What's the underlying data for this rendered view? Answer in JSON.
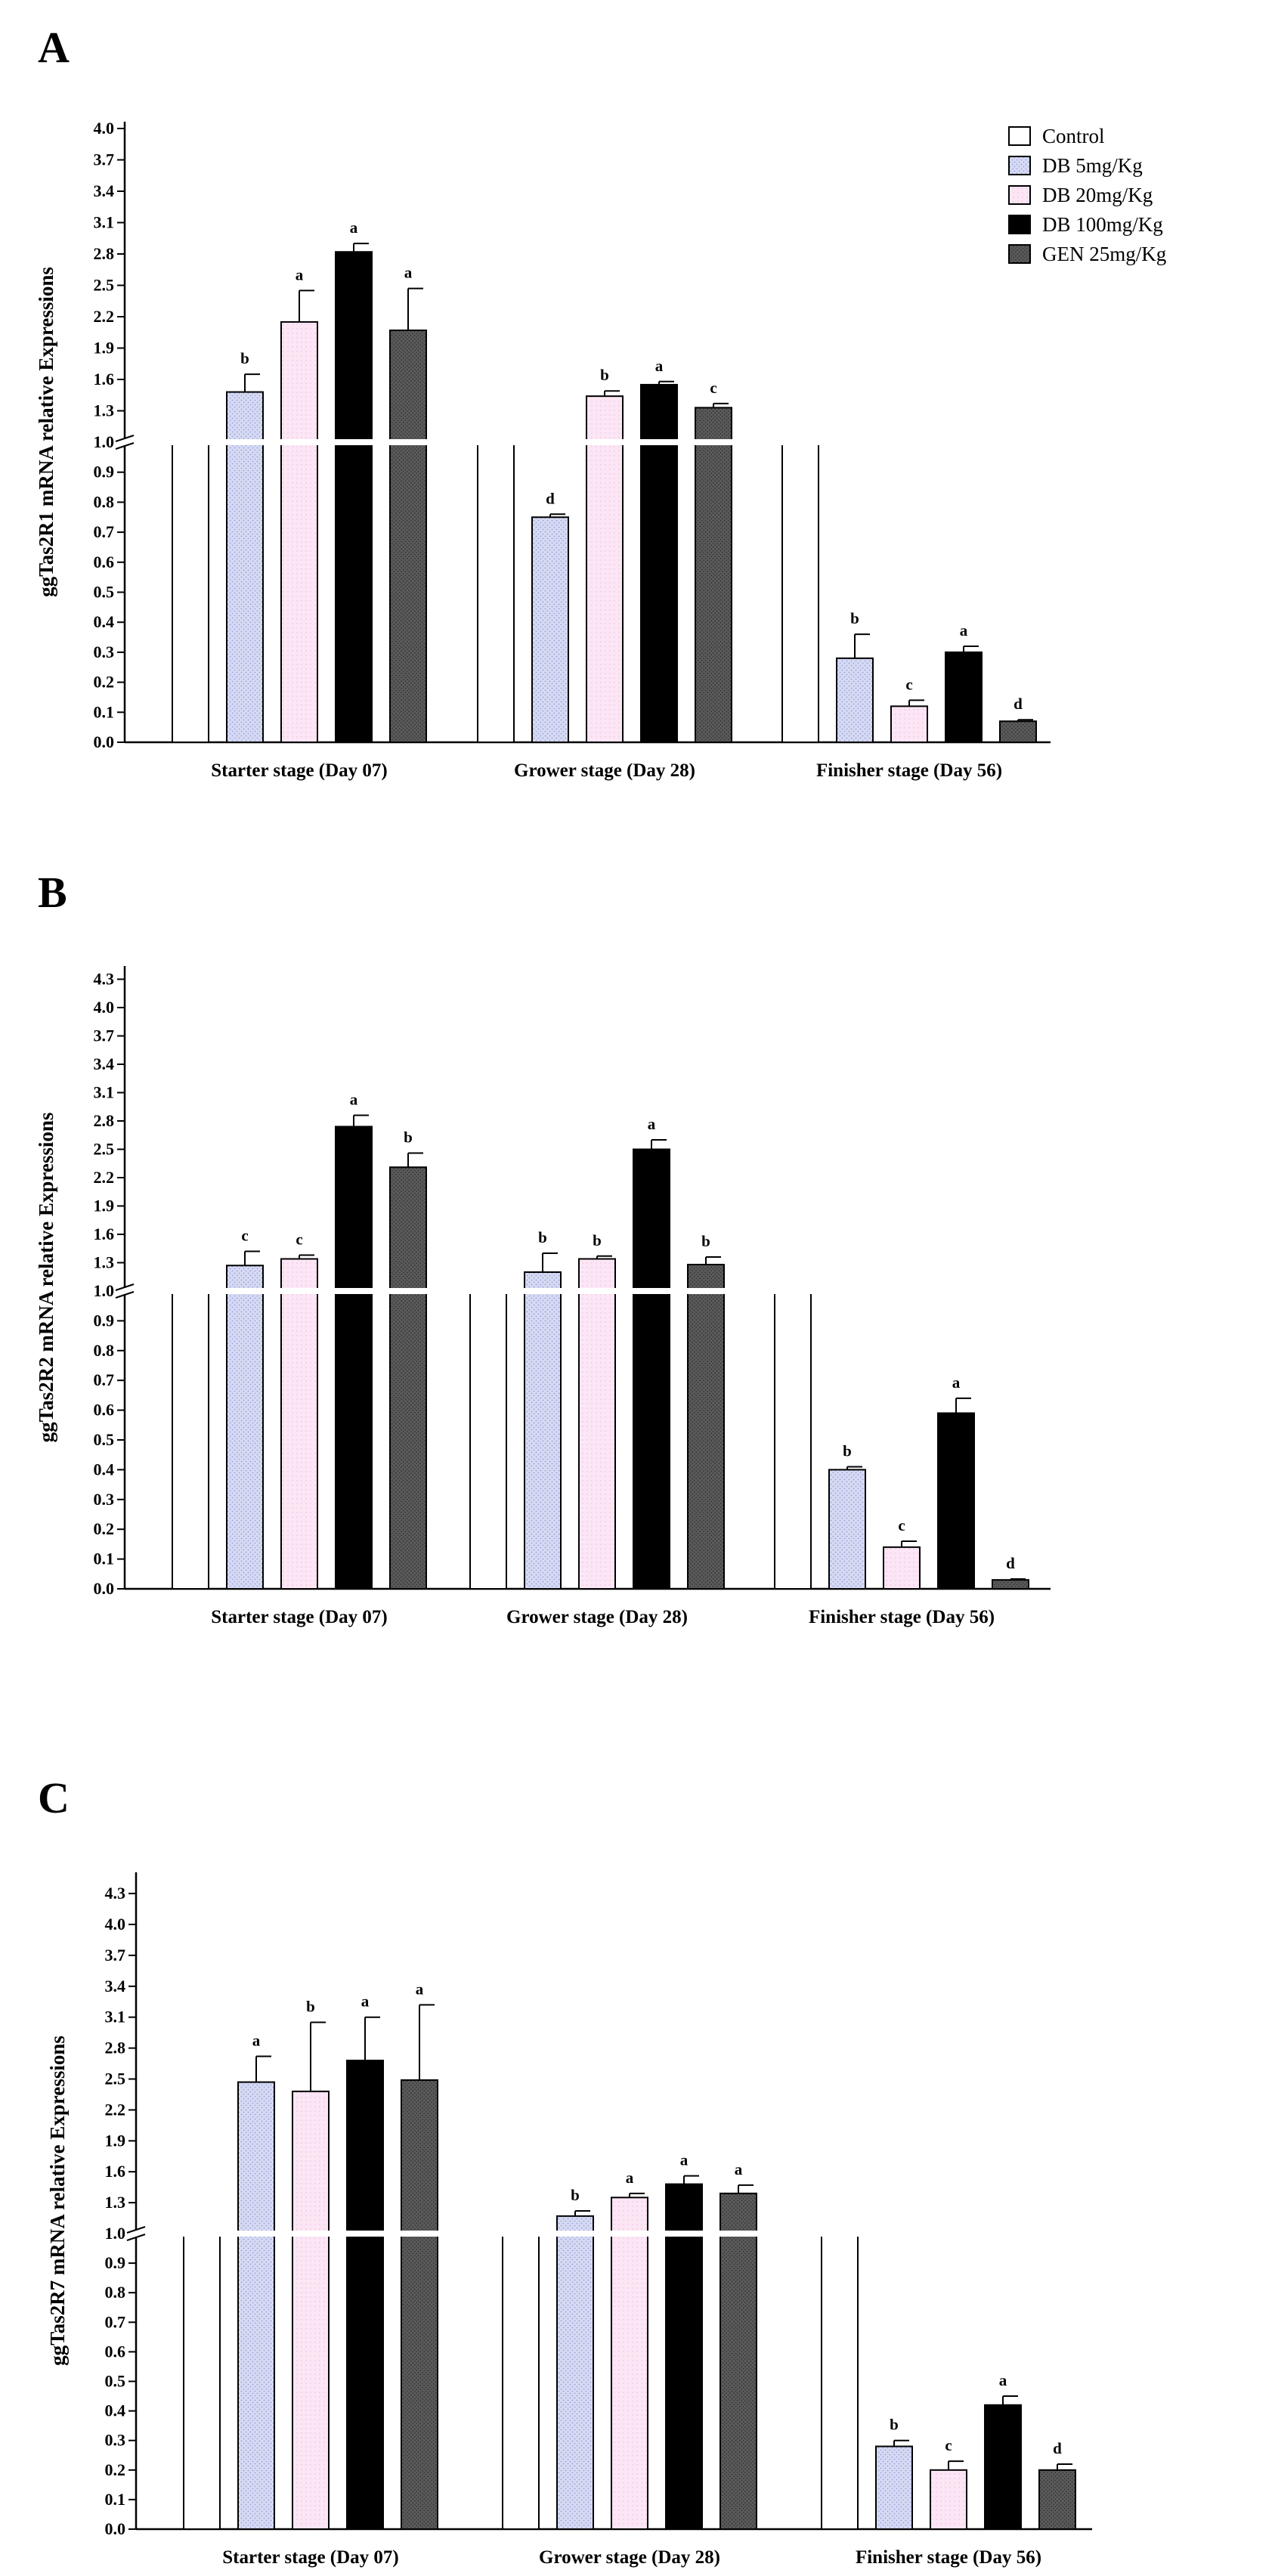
{
  "chart_data": [
    {
      "panel": "A",
      "type": "bar",
      "ylabel": "ggTas2R1 mRNA relative Expressions",
      "lower_ticks": [
        "0.0",
        "0.1",
        "0.2",
        "0.3",
        "0.4",
        "0.5",
        "0.6",
        "0.7",
        "0.8",
        "0.9",
        "1.0"
      ],
      "upper_ticks": [
        "1.3",
        "1.6",
        "1.9",
        "2.2",
        "2.5",
        "2.8",
        "3.1",
        "3.4",
        "3.7",
        "4.0"
      ],
      "lower_range": [
        0,
        1.0
      ],
      "upper_range": [
        1.0,
        4.0
      ],
      "categories": [
        "Starter stage (Day 07)",
        "Grower stage (Day 28)",
        "Finisher stage (Day 56)"
      ],
      "series": [
        {
          "name": "Control",
          "values": [
            1.0,
            1.0,
            1.0
          ],
          "errors": [
            0,
            0,
            0
          ],
          "labels": [
            "",
            "",
            ""
          ]
        },
        {
          "name": "DB 5mg/Kg",
          "values": [
            1.48,
            0.75,
            0.28
          ],
          "errors": [
            0.17,
            0.01,
            0.08
          ],
          "labels": [
            "b",
            "d",
            "b"
          ]
        },
        {
          "name": "DB 20mg/Kg",
          "values": [
            2.15,
            1.44,
            0.12
          ],
          "errors": [
            0.3,
            0.05,
            0.02
          ],
          "labels": [
            "a",
            "b",
            "c"
          ]
        },
        {
          "name": "DB 100mg/Kg",
          "values": [
            2.82,
            1.55,
            0.3
          ],
          "errors": [
            0.08,
            0.03,
            0.02
          ],
          "labels": [
            "a",
            "a",
            "a"
          ]
        },
        {
          "name": "GEN 25mg/Kg",
          "values": [
            2.07,
            1.33,
            0.07
          ],
          "errors": [
            0.4,
            0.04,
            0.005
          ],
          "labels": [
            "a",
            "c",
            "d"
          ]
        }
      ]
    },
    {
      "panel": "B",
      "type": "bar",
      "ylabel": "ggTas2R2 mRNA relative Expressions",
      "lower_ticks": [
        "0.0",
        "0.1",
        "0.2",
        "0.3",
        "0.4",
        "0.5",
        "0.6",
        "0.7",
        "0.8",
        "0.9",
        "1.0"
      ],
      "upper_ticks": [
        "1.3",
        "1.6",
        "1.9",
        "2.2",
        "2.5",
        "2.8",
        "3.1",
        "3.4",
        "3.7",
        "4.0",
        "4.3"
      ],
      "lower_range": [
        0,
        1.0
      ],
      "upper_range": [
        1.0,
        4.3
      ],
      "categories": [
        "Starter stage (Day 07)",
        "Grower stage (Day 28)",
        "Finisher stage (Day 56)"
      ],
      "series": [
        {
          "name": "Control",
          "values": [
            1.0,
            1.0,
            1.0
          ],
          "errors": [
            0,
            0,
            0
          ],
          "labels": [
            "",
            "",
            ""
          ]
        },
        {
          "name": "DB 5mg/Kg",
          "values": [
            1.27,
            1.2,
            0.4
          ],
          "errors": [
            0.15,
            0.2,
            0.01
          ],
          "labels": [
            "c",
            "b",
            "b"
          ]
        },
        {
          "name": "DB 20mg/Kg",
          "values": [
            1.34,
            1.34,
            0.14
          ],
          "errors": [
            0.04,
            0.03,
            0.02
          ],
          "labels": [
            "c",
            "b",
            "c"
          ]
        },
        {
          "name": "DB 100mg/Kg",
          "values": [
            2.74,
            2.5,
            0.59
          ],
          "errors": [
            0.12,
            0.1,
            0.05
          ],
          "labels": [
            "a",
            "a",
            "a"
          ]
        },
        {
          "name": "GEN 25mg/Kg",
          "values": [
            2.31,
            1.28,
            0.03
          ],
          "errors": [
            0.15,
            0.08,
            0.003
          ],
          "labels": [
            "b",
            "b",
            "d"
          ]
        }
      ]
    },
    {
      "panel": "C",
      "type": "bar",
      "ylabel": "ggTas2R7 mRNA relative Expressions",
      "lower_ticks": [
        "0.0",
        "0.1",
        "0.2",
        "0.3",
        "0.4",
        "0.5",
        "0.6",
        "0.7",
        "0.8",
        "0.9",
        "1.0"
      ],
      "upper_ticks": [
        "1.3",
        "1.6",
        "1.9",
        "2.2",
        "2.5",
        "2.8",
        "3.1",
        "3.4",
        "3.7",
        "4.0",
        "4.3"
      ],
      "lower_range": [
        0,
        1.0
      ],
      "upper_range": [
        1.0,
        4.3
      ],
      "categories": [
        "Starter stage (Day 07)",
        "Grower stage (Day 28)",
        "Finisher stage (Day 56)"
      ],
      "series": [
        {
          "name": "Control",
          "values": [
            1.0,
            1.0,
            1.0
          ],
          "errors": [
            0,
            0,
            0
          ],
          "labels": [
            "",
            "",
            ""
          ]
        },
        {
          "name": "DB 5mg/Kg",
          "values": [
            2.47,
            1.17,
            0.28
          ],
          "errors": [
            0.25,
            0.05,
            0.02
          ],
          "labels": [
            "a",
            "b",
            "b"
          ]
        },
        {
          "name": "DB 20mg/Kg",
          "values": [
            2.38,
            1.35,
            0.2
          ],
          "errors": [
            0.67,
            0.04,
            0.03
          ],
          "labels": [
            "b",
            "a",
            "c"
          ]
        },
        {
          "name": "DB 100mg/Kg",
          "values": [
            2.68,
            1.48,
            0.42
          ],
          "errors": [
            0.42,
            0.08,
            0.03
          ],
          "labels": [
            "a",
            "a",
            "a"
          ]
        },
        {
          "name": "GEN 25mg/Kg",
          "values": [
            2.49,
            1.39,
            0.2
          ],
          "errors": [
            0.73,
            0.08,
            0.02
          ],
          "labels": [
            "a",
            "a",
            "d"
          ]
        }
      ]
    }
  ],
  "legend": {
    "entries": [
      "Control",
      "DB 5mg/Kg",
      "DB 20mg/Kg",
      "DB 100mg/Kg",
      "GEN 25mg/Kg"
    ],
    "placement": "top-right of panel A"
  },
  "colors": {
    "Control": "#ffffff",
    "DB 5mg/Kg": "#d8dcf4",
    "DB 20mg/Kg": "#fbe4f4",
    "DB 100mg/Kg": "#000000",
    "GEN 25mg/Kg": "#555555"
  }
}
